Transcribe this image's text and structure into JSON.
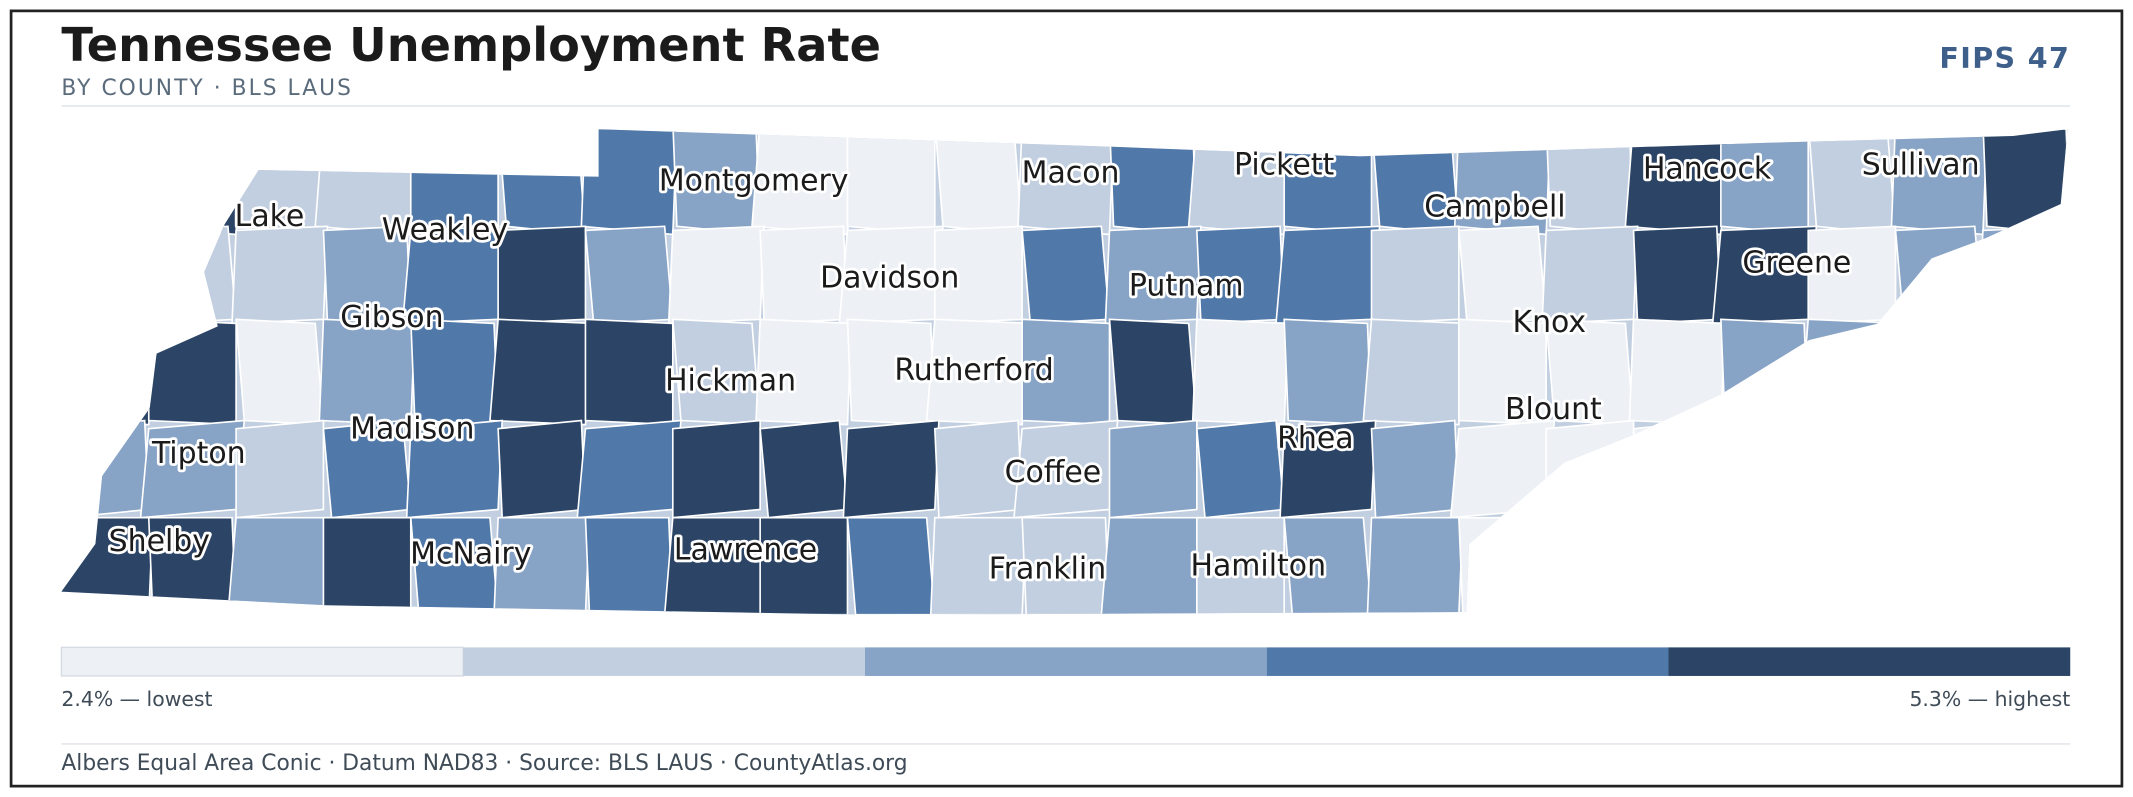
{
  "header": {
    "title": "Tennessee Unemployment Rate",
    "subtitle": "BY COUNTY · BLS LAUS",
    "badge": "FIPS 47"
  },
  "legend": {
    "colors": [
      "#edf1f6",
      "#c2cfe0",
      "#87a3c6",
      "#5078a8",
      "#2c4566"
    ],
    "min_label": "2.4% — lowest",
    "max_label": "5.3% — highest"
  },
  "county_labels": [
    "Lake",
    "Weakley",
    "Gibson",
    "Tipton",
    "Madison",
    "Shelby",
    "McNairy",
    "Montgomery",
    "Hickman",
    "Lawrence",
    "Davidson",
    "Rutherford",
    "Macon",
    "Coffee",
    "Franklin",
    "Pickett",
    "Putnam",
    "Rhea",
    "Hamilton",
    "Campbell",
    "Knox",
    "Blount",
    "Hancock",
    "Greene",
    "Sullivan"
  ],
  "footer": "Albers Equal Area Conic · Datum NAD83 · Source: BLS LAUS · CountyAtlas.org"
}
